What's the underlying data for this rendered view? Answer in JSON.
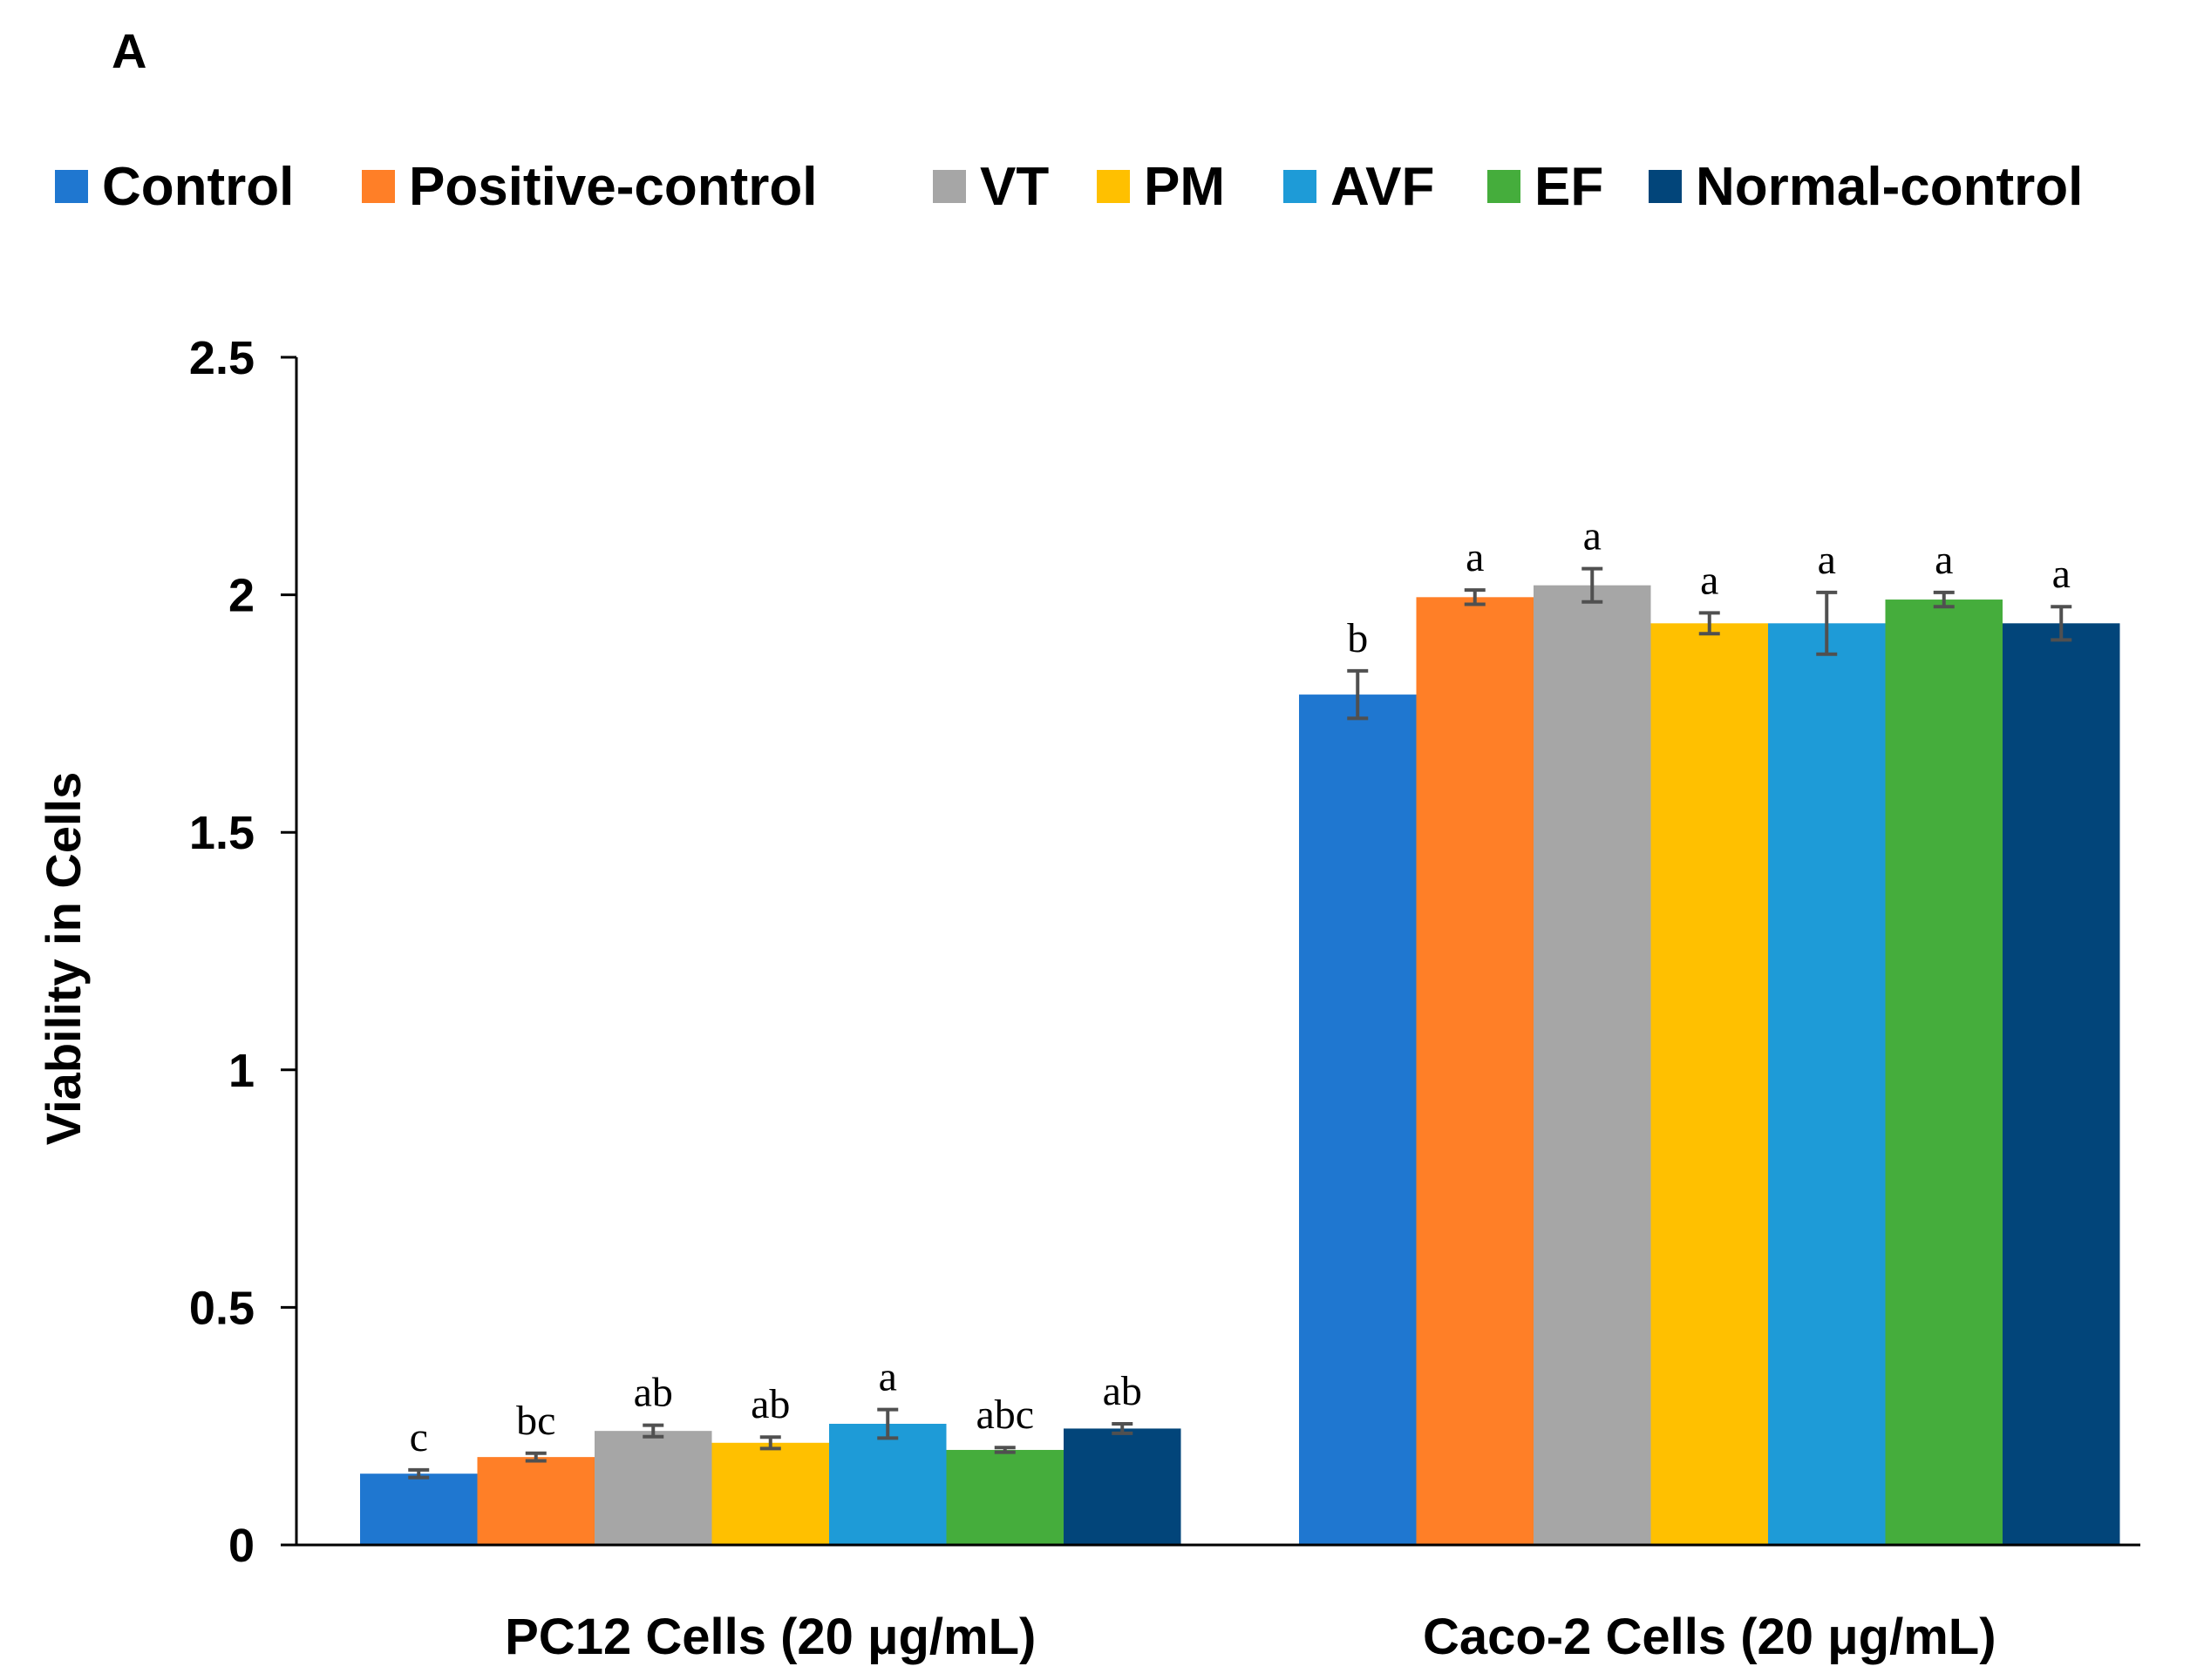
{
  "chart_data": {
    "type": "bar",
    "panel_label": "A",
    "ylabel": "Viability in Cells",
    "xlabel": "",
    "ylim": [
      0,
      2.5
    ],
    "yticks": [
      "0",
      "0.5",
      "1",
      "1.5",
      "2",
      "2.5"
    ],
    "ytick_values": [
      0,
      0.5,
      1,
      1.5,
      2,
      2.5
    ],
    "grid": false,
    "legend_position": "top",
    "categories": [
      "PC12 Cells (20 μg/mL)",
      "Caco-2 Cells (20 μg/mL)"
    ],
    "series": [
      {
        "name": "Control",
        "color": "#1F77D0",
        "values": [
          0.15,
          1.79
        ],
        "errors": [
          0.008,
          0.05
        ],
        "letters": [
          "c",
          "b"
        ]
      },
      {
        "name": "Positive-control",
        "color": "#FF7F27",
        "values": [
          0.185,
          1.995
        ],
        "errors": [
          0.008,
          0.015
        ],
        "letters": [
          "bc",
          "a"
        ]
      },
      {
        "name": "VT",
        "color": "#A6A6A6",
        "values": [
          0.24,
          2.02
        ],
        "errors": [
          0.012,
          0.035
        ],
        "letters": [
          "ab",
          "a"
        ]
      },
      {
        "name": "PM",
        "color": "#FFC000",
        "values": [
          0.215,
          1.94
        ],
        "errors": [
          0.012,
          0.022
        ],
        "letters": [
          "ab",
          "a"
        ]
      },
      {
        "name": "AVF",
        "color": "#1E9BD7",
        "values": [
          0.255,
          1.94
        ],
        "errors": [
          0.03,
          0.065
        ],
        "letters": [
          "a",
          "a"
        ]
      },
      {
        "name": "EF",
        "color": "#45AD3C",
        "values": [
          0.2,
          1.99
        ],
        "errors": [
          0.005,
          0.015
        ],
        "letters": [
          "abc",
          "a"
        ]
      },
      {
        "name": "Normal-control",
        "color": "#02457A",
        "values": [
          0.245,
          1.94
        ],
        "errors": [
          0.01,
          0.035
        ],
        "letters": [
          "ab",
          "a"
        ]
      }
    ]
  }
}
